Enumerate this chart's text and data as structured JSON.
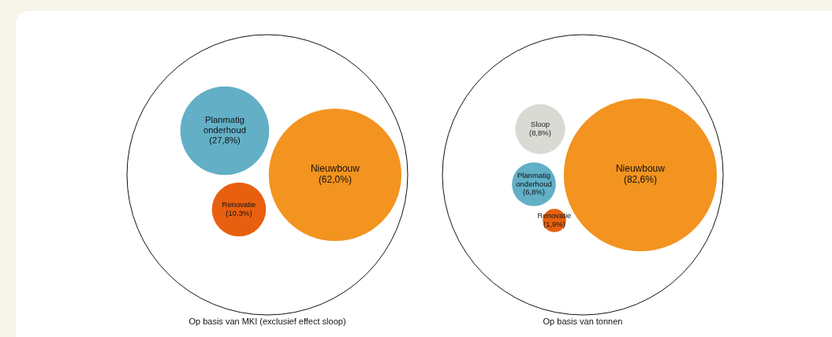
{
  "chart_data": [
    {
      "type": "other",
      "title": "Op basis van MKI (exclusief effect sloop)",
      "categories": [
        "Nieuwbouw",
        "Renovatie",
        "Planmatig onderhoud"
      ],
      "values": [
        62.0,
        10.3,
        27.8
      ],
      "value_labels": [
        "(62,0%)",
        "(10,3%)",
        "(27,8%)"
      ],
      "colors": [
        "#f39320",
        "#e8600f",
        "#62afc6"
      ]
    },
    {
      "type": "other",
      "title": "Op basis van tonnen",
      "categories": [
        "Nieuwbouw",
        "Sloop",
        "Renovatie",
        "Planmatig onderhoud"
      ],
      "values": [
        82.6,
        8.8,
        1.9,
        6.8
      ],
      "value_labels": [
        "(82,6%)",
        "(8,8%)",
        "(1,9%)",
        "(6,8%)"
      ],
      "colors": [
        "#f39320",
        "#dadad4",
        "#e8600f",
        "#62afc6"
      ]
    }
  ]
}
